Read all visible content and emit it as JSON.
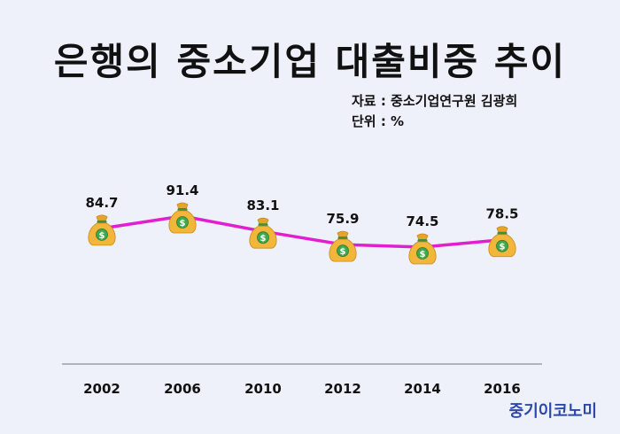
{
  "title": "은행의 중소기업 대출비중 추이",
  "source_label": "자료 : 중소기업연구원 김광희",
  "unit_label": "단위 : %",
  "brand": "중기이코노미",
  "colors": {
    "line": "#e21fd0",
    "axis": "#8a8fa0",
    "bag": "#f2b63a",
    "coin": "#3ea84b"
  },
  "chart_data": {
    "type": "line",
    "title": "은행의 중소기업 대출비중 추이",
    "xlabel": "",
    "ylabel": "",
    "categories": [
      "2002",
      "2006",
      "2010",
      "2012",
      "2014",
      "2016"
    ],
    "series": [
      {
        "values": [
          84.7,
          91.4,
          83.1,
          75.9,
          74.5,
          78.5
        ]
      }
    ],
    "ylim": [
      0,
      100
    ],
    "grid": false,
    "marker": "money-bag-icon"
  }
}
